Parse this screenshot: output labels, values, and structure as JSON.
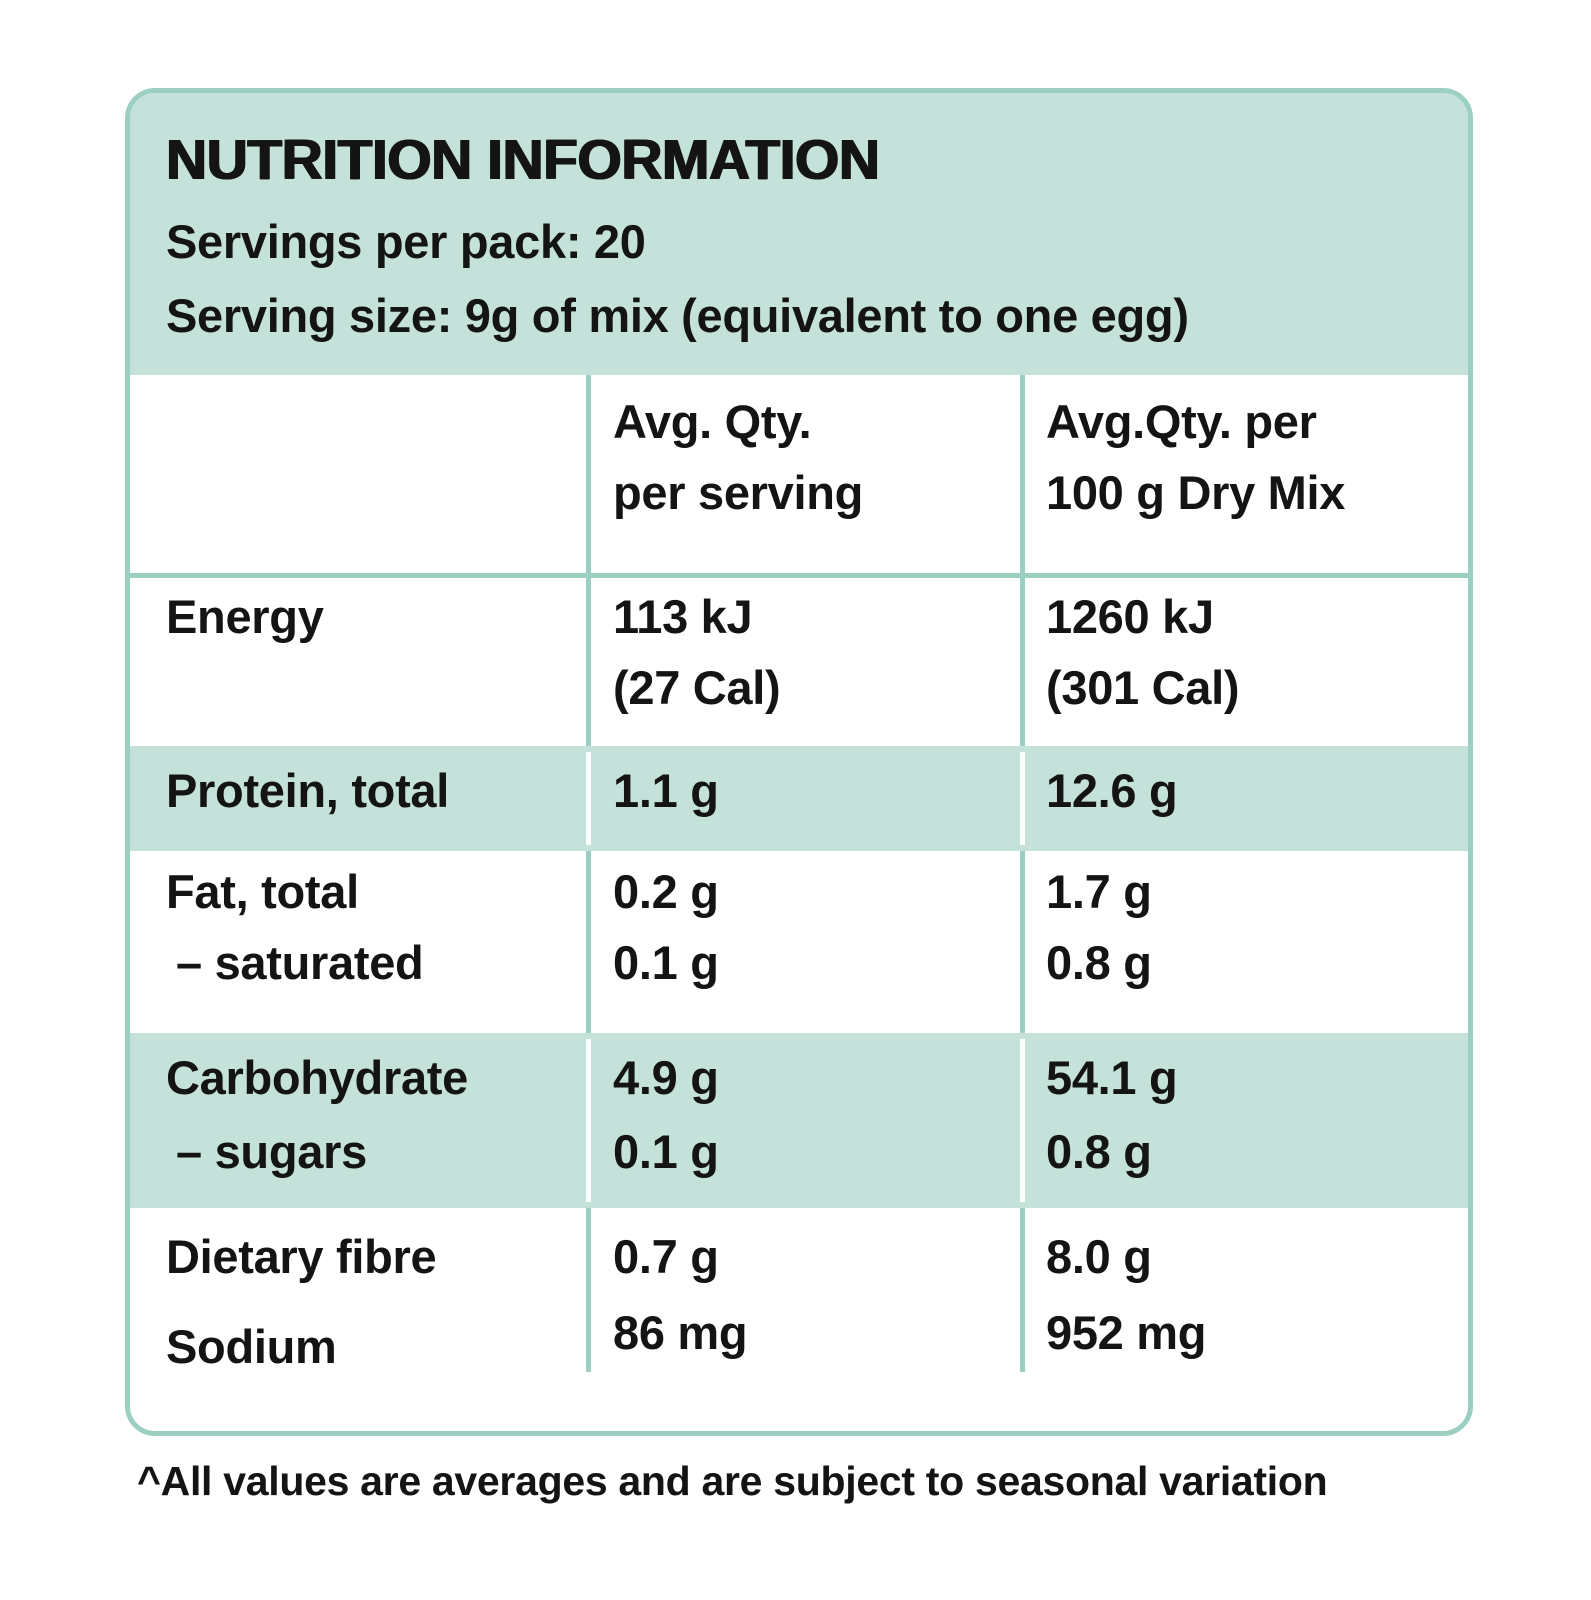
{
  "panel": {
    "title": "NUTRITION INFORMATION",
    "servings_per_pack": "Servings per pack: 20",
    "serving_size": "Serving size: 9g of mix (equivalent to one egg)"
  },
  "table": {
    "columns": {
      "per_serving": [
        "Avg. Qty.",
        "per serving"
      ],
      "per_100g": [
        "Avg.Qty. per",
        "100 g Dry Mix"
      ]
    },
    "rows": [
      {
        "label": [
          "Energy"
        ],
        "per_serving": [
          "113 kJ",
          "(27 Cal)"
        ],
        "per_100g": [
          "1260 kJ",
          "(301 Cal)"
        ],
        "highlighted": false
      },
      {
        "label": [
          "Protein, total"
        ],
        "per_serving": [
          "1.1 g"
        ],
        "per_100g": [
          "12.6 g"
        ],
        "highlighted": true
      },
      {
        "label": [
          "Fat, total",
          "– saturated"
        ],
        "per_serving": [
          "0.2 g",
          "0.1 g"
        ],
        "per_100g": [
          "1.7 g",
          "0.8 g"
        ],
        "highlighted": false
      },
      {
        "label": [
          "Carbohydrate",
          "– sugars"
        ],
        "per_serving": [
          "4.9 g",
          "0.1 g"
        ],
        "per_100g": [
          "54.1 g",
          "0.8 g"
        ],
        "highlighted": true
      },
      {
        "label": [
          "Dietary fibre",
          "Sodium"
        ],
        "per_serving": [
          "0.7 g",
          "86 mg"
        ],
        "per_100g": [
          "8.0 g",
          "952 mg"
        ],
        "highlighted": false
      }
    ]
  },
  "footnote": "^All values are averages and are subject to seasonal variation",
  "colors": {
    "highlight_mint": "#c5e2da",
    "border_teal": "#9bcfc1",
    "text": "#141414",
    "background": "#ffffff"
  }
}
